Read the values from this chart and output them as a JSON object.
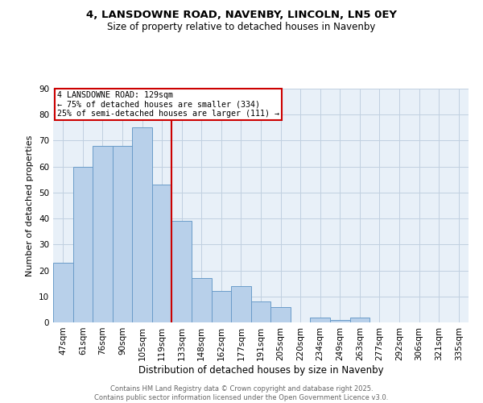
{
  "title1": "4, LANSDOWNE ROAD, NAVENBY, LINCOLN, LN5 0EY",
  "title2": "Size of property relative to detached houses in Navenby",
  "xlabel": "Distribution of detached houses by size in Navenby",
  "ylabel": "Number of detached properties",
  "categories": [
    "47sqm",
    "61sqm",
    "76sqm",
    "90sqm",
    "105sqm",
    "119sqm",
    "133sqm",
    "148sqm",
    "162sqm",
    "177sqm",
    "191sqm",
    "205sqm",
    "220sqm",
    "234sqm",
    "249sqm",
    "263sqm",
    "277sqm",
    "292sqm",
    "306sqm",
    "321sqm",
    "335sqm"
  ],
  "values": [
    23,
    60,
    68,
    68,
    75,
    53,
    39,
    17,
    12,
    14,
    8,
    6,
    0,
    2,
    1,
    2,
    0,
    0,
    0,
    0,
    0
  ],
  "bar_color": "#b8d0ea",
  "bar_edge_color": "#6a9cc9",
  "vline_x_index": 6,
  "vline_color": "#cc0000",
  "annotation_text": "4 LANSDOWNE ROAD: 129sqm\n← 75% of detached houses are smaller (334)\n25% of semi-detached houses are larger (111) →",
  "annotation_box_color": "#ffffff",
  "annotation_box_edge": "#cc0000",
  "ylim": [
    0,
    90
  ],
  "yticks": [
    0,
    10,
    20,
    30,
    40,
    50,
    60,
    70,
    80,
    90
  ],
  "footer": "Contains HM Land Registry data © Crown copyright and database right 2025.\nContains public sector information licensed under the Open Government Licence v3.0.",
  "bg_color": "#e8f0f8",
  "fig_bg": "#ffffff",
  "grid_color": "#c0d0e0"
}
